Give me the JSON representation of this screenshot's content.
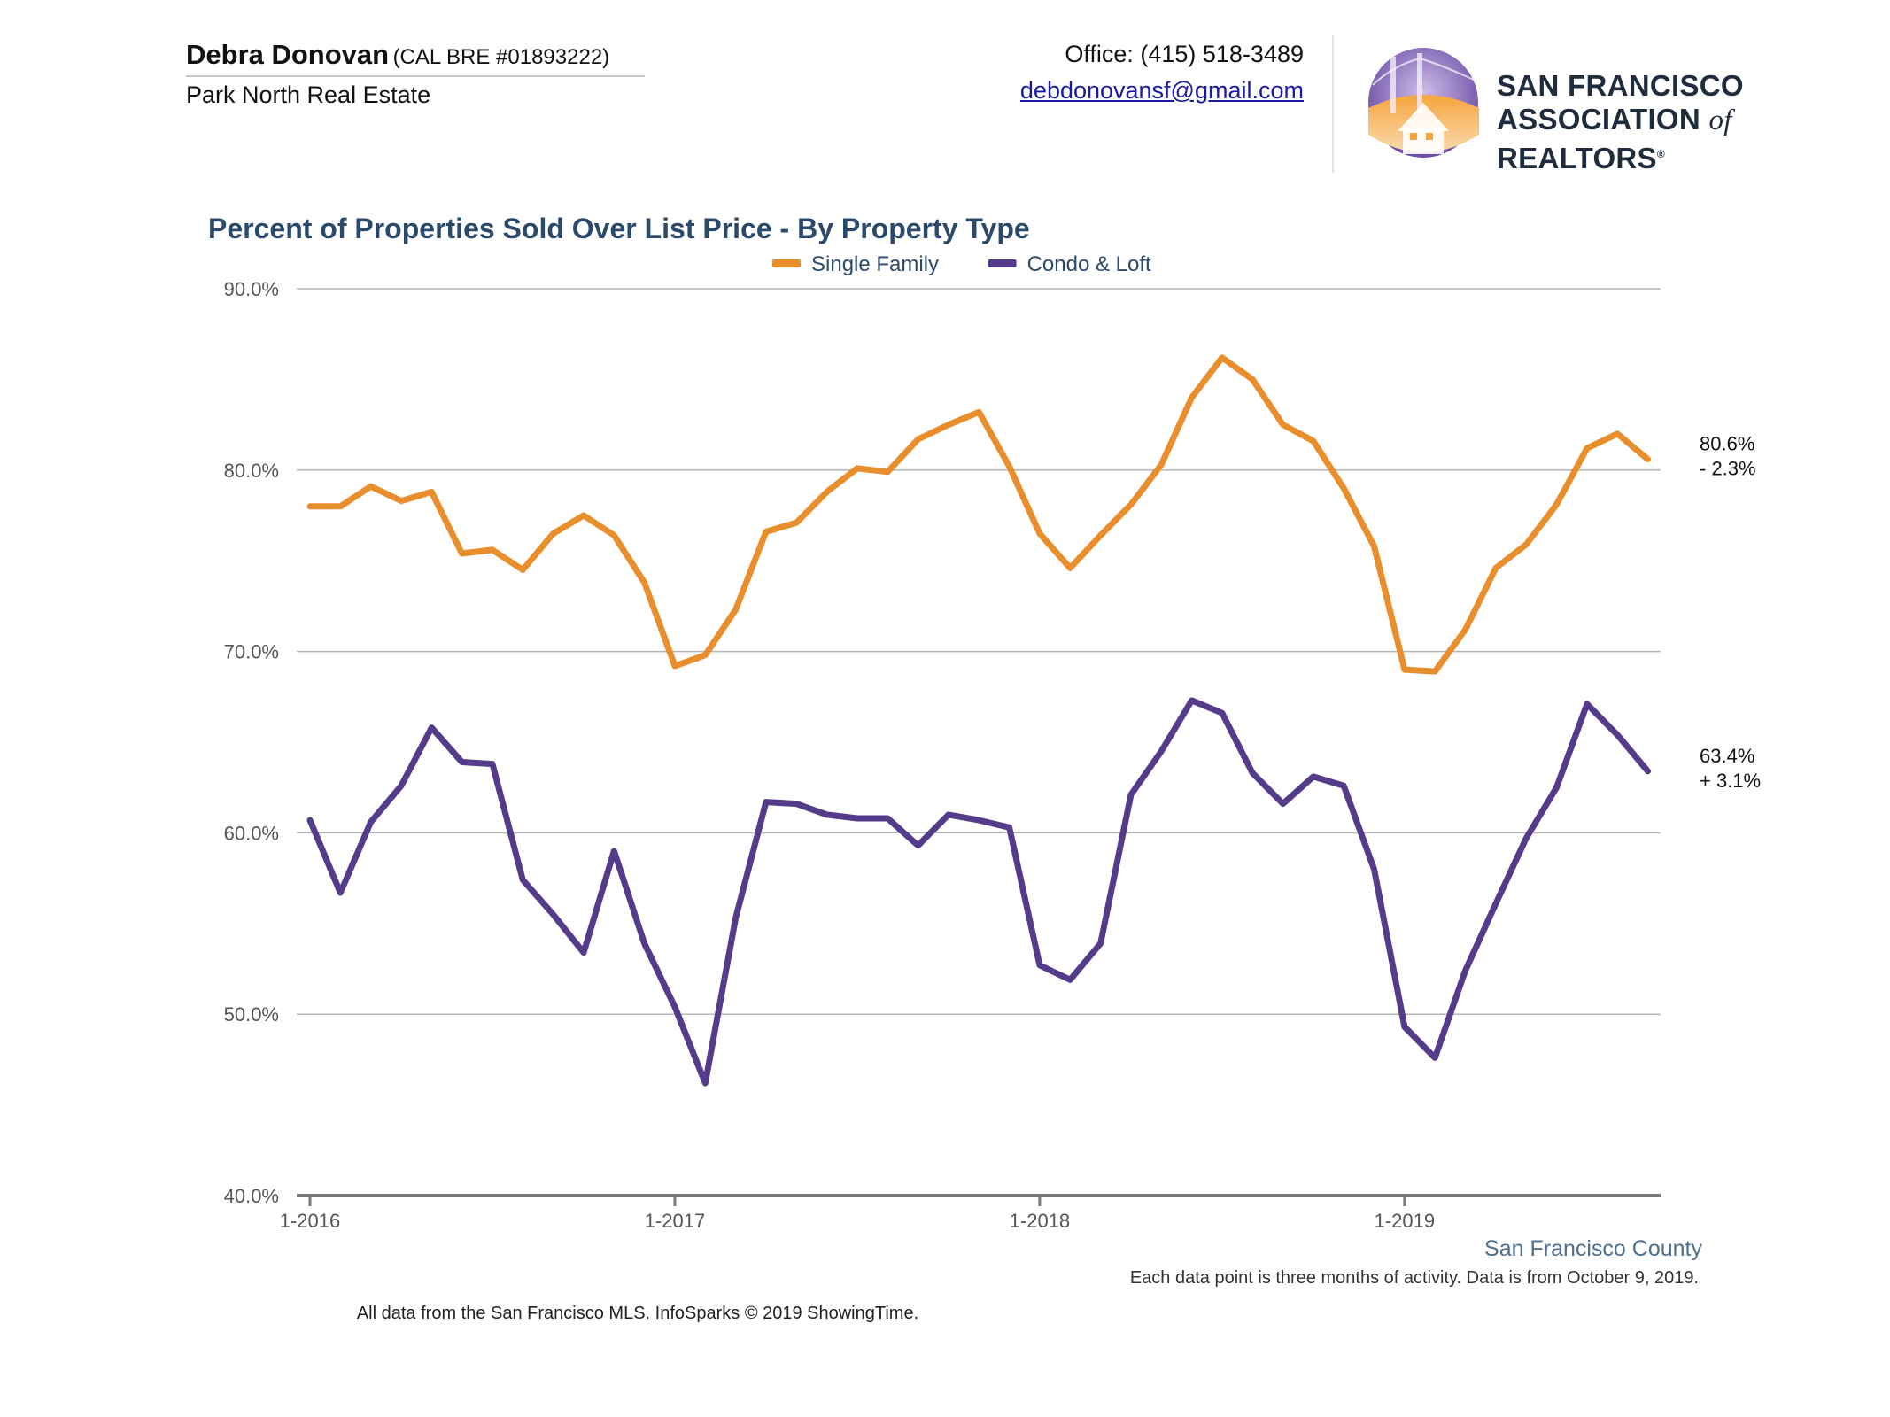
{
  "agent": {
    "name": "Debra Donovan",
    "license": "(CAL BRE #01893222)",
    "company": "Park North Real Estate"
  },
  "contact": {
    "office": "Office: (415) 518-3489",
    "email": "debdonovansf@gmail.com"
  },
  "logo": {
    "line1": "SAN FRANCISCO",
    "line2_a": "ASSOCIATION",
    "line2_of": "of",
    "line2_b": "REALTORS",
    "reg": "®"
  },
  "chart_data": {
    "type": "line",
    "title": "Percent of Properties Sold Over List Price - By Property Type",
    "xlabel": "",
    "ylabel": "",
    "ylim": [
      40,
      90
    ],
    "yticks": [
      "40.0%",
      "50.0%",
      "60.0%",
      "70.0%",
      "80.0%",
      "90.0%"
    ],
    "ytick_values": [
      40,
      50,
      60,
      70,
      80,
      90
    ],
    "x": [
      "1-2016",
      "2-2016",
      "3-2016",
      "4-2016",
      "5-2016",
      "6-2016",
      "7-2016",
      "8-2016",
      "9-2016",
      "10-2016",
      "11-2016",
      "12-2016",
      "1-2017",
      "2-2017",
      "3-2017",
      "4-2017",
      "5-2017",
      "6-2017",
      "7-2017",
      "8-2017",
      "9-2017",
      "10-2017",
      "11-2017",
      "12-2017",
      "1-2018",
      "2-2018",
      "3-2018",
      "4-2018",
      "5-2018",
      "6-2018",
      "7-2018",
      "8-2018",
      "9-2018",
      "10-2018",
      "11-2018",
      "12-2018",
      "1-2019",
      "2-2019",
      "3-2019",
      "4-2019",
      "5-2019",
      "6-2019",
      "7-2019",
      "8-2019",
      "9-2019"
    ],
    "xtick_labels": [
      "1-2016",
      "1-2017",
      "1-2018",
      "1-2019"
    ],
    "xtick_months": [
      "1-2016",
      "1-2017",
      "1-2018",
      "1-2019"
    ],
    "legend_position": "top-center",
    "grid": true,
    "series": [
      {
        "name": "Single Family",
        "color": "#e98e2c",
        "end_value": "80.6%",
        "end_change": "- 2.3%",
        "values": [
          78.0,
          78.0,
          79.1,
          78.3,
          78.8,
          75.4,
          75.6,
          74.5,
          76.5,
          77.5,
          76.4,
          73.8,
          69.2,
          69.8,
          72.3,
          76.6,
          77.1,
          78.8,
          80.1,
          79.9,
          81.7,
          82.5,
          83.2,
          80.2,
          76.5,
          74.6,
          76.4,
          78.1,
          80.3,
          84.0,
          86.2,
          85.0,
          82.5,
          81.6,
          79.0,
          75.8,
          69.0,
          68.9,
          71.2,
          74.6,
          75.9,
          78.1,
          81.2,
          82.0,
          80.6
        ]
      },
      {
        "name": "Condo & Loft",
        "color": "#553c8b",
        "end_value": "63.4%",
        "end_change": "+ 3.1%",
        "values": [
          60.7,
          56.7,
          60.6,
          62.6,
          65.8,
          63.9,
          63.8,
          57.4,
          55.5,
          53.4,
          59.0,
          53.9,
          50.4,
          46.2,
          55.3,
          61.7,
          61.6,
          61.0,
          60.8,
          60.8,
          59.3,
          61.0,
          60.7,
          60.3,
          52.7,
          51.9,
          53.9,
          62.1,
          64.5,
          67.3,
          66.6,
          63.3,
          61.6,
          63.1,
          62.6,
          58.0,
          49.3,
          47.6,
          52.4,
          56.1,
          59.7,
          62.5,
          67.1,
          65.4,
          63.4
        ]
      }
    ]
  },
  "footer": {
    "region": "San Francisco County",
    "note": "Each data point is three months of activity. Data is from October 9, 2019.",
    "source": "All data from the San Francisco MLS. InfoSparks © 2019 ShowingTime."
  }
}
